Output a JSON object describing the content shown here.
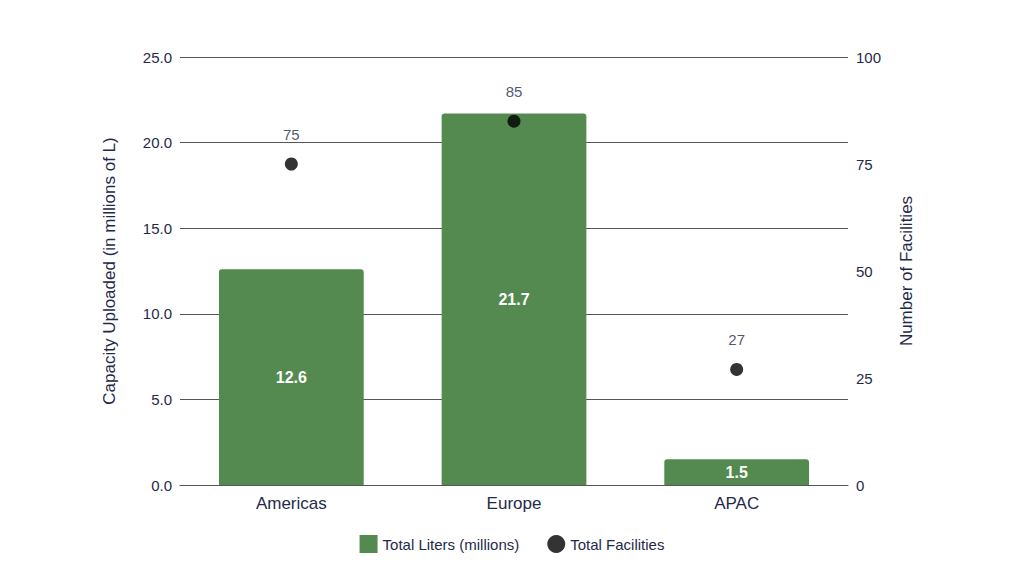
{
  "chart_data": {
    "type": "bar",
    "categories": [
      "Americas",
      "Europe",
      "APAC"
    ],
    "series": [
      {
        "name": "Total Liters (millions)",
        "type": "bar",
        "color": "#548a4f",
        "values": [
          12.6,
          21.7,
          1.5
        ]
      },
      {
        "name": "Total Facilities",
        "type": "scatter",
        "axis": "y2",
        "color": "#000000",
        "marker": "circle",
        "values": [
          75,
          85,
          27
        ]
      }
    ],
    "ylabel": "Capacity Uploaded (in millions of L)",
    "y2label": "Number of Facilities",
    "ylim": [
      0,
      25
    ],
    "yticks": [
      {
        "value": 0,
        "label": "0.0"
      },
      {
        "value": 5,
        "label": "5.0"
      },
      {
        "value": 10,
        "label": "10.0"
      },
      {
        "value": 15,
        "label": "15.0"
      },
      {
        "value": 20,
        "label": "20.0"
      },
      {
        "value": 25,
        "label": "25.0"
      }
    ],
    "y2lim": [
      0,
      100
    ],
    "y2ticks": [
      0,
      25,
      50,
      75,
      100
    ],
    "grid": true,
    "legend": "bottom",
    "data_labels": true
  }
}
